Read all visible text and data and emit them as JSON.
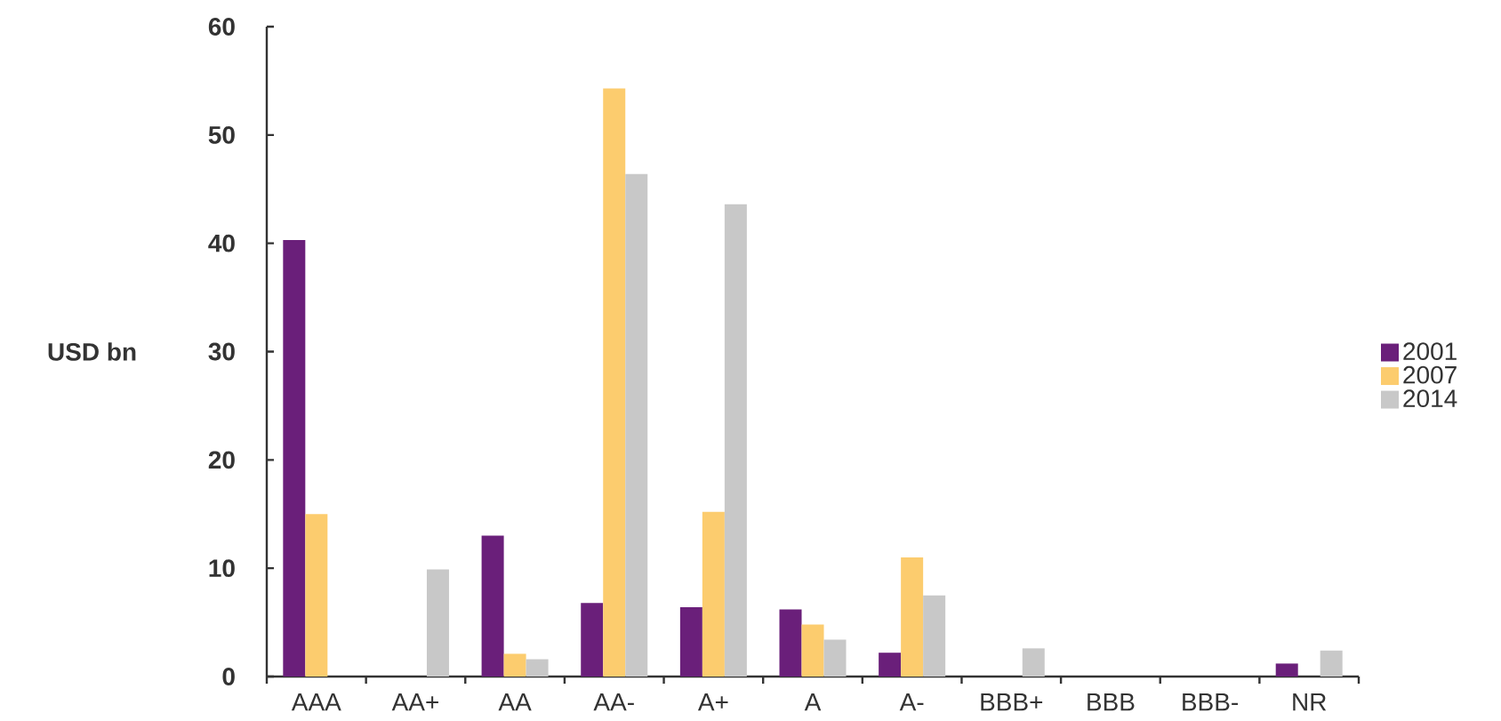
{
  "chart_data": {
    "type": "bar",
    "ylabel": "USD bn",
    "categories": [
      "AAA",
      "AA+",
      "AA",
      "AA-",
      "A+",
      "A",
      "A-",
      "BBB+",
      "BBB",
      "BBB-",
      "NR"
    ],
    "series": [
      {
        "name": "2001",
        "color": "#6a1f7a",
        "values": [
          40.3,
          null,
          13.0,
          6.8,
          6.4,
          6.2,
          2.2,
          null,
          null,
          null,
          1.2
        ]
      },
      {
        "name": "2007",
        "color": "#fccc6e",
        "values": [
          15.0,
          null,
          2.1,
          54.3,
          15.2,
          4.8,
          11.0,
          null,
          null,
          null,
          null
        ]
      },
      {
        "name": "2014",
        "color": "#c8c8c8",
        "values": [
          null,
          9.9,
          1.6,
          46.4,
          43.6,
          3.4,
          7.5,
          2.6,
          null,
          null,
          2.4
        ]
      }
    ],
    "ylim": [
      0,
      60
    ],
    "yticks": [
      0,
      10,
      20,
      30,
      40,
      50,
      60
    ],
    "legend": "right"
  }
}
